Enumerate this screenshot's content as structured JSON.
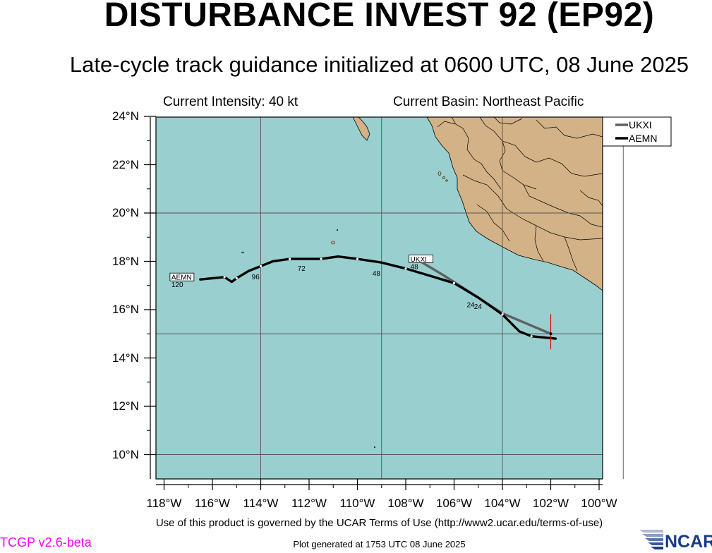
{
  "title": "DISTURBANCE INVEST 92 (EP92)",
  "subtitle": "Late-cycle track guidance initialized at 0600 UTC, 08 June 2025",
  "intensity_text": "Current Intensity: 40 kt",
  "basin_text": "Current Basin: Northeast Pacific",
  "y_ticks": [
    "24°N",
    "22°N",
    "20°N",
    "18°N",
    "16°N",
    "14°N",
    "12°N",
    "10°N"
  ],
  "x_ticks": [
    "118°W",
    "116°W",
    "114°W",
    "112°W",
    "110°W",
    "108°W",
    "106°W",
    "104°W",
    "102°W",
    "100°W"
  ],
  "legend": [
    {
      "name": "UKXI",
      "color": "#606060"
    },
    {
      "name": "AEMN",
      "color": "#000000"
    }
  ],
  "ocean_color": "#99cfcf",
  "land_color": "#d2b286",
  "current_position_marker_color": "#e00000",
  "current_position": {
    "lon": -102.0,
    "lat": 15.0
  },
  "tracks": [
    {
      "name": "UKXI",
      "label": "UKXI",
      "label_hour": "48",
      "color": "#606060",
      "points": [
        [
          -102.0,
          15.0
        ],
        [
          -104.0,
          15.85
        ],
        [
          -106.4,
          17.4
        ],
        [
          -107.4,
          18.0
        ]
      ],
      "hour_labels": [
        {
          "text": "24",
          "lon": -105.3,
          "lat": 16.45
        }
      ]
    },
    {
      "name": "AEMN",
      "label": "AEMN",
      "label_hour": "120",
      "color": "#000000",
      "points": [
        [
          -101.8,
          14.8
        ],
        [
          -102.8,
          14.9
        ],
        [
          -103.3,
          15.1
        ],
        [
          -104.0,
          15.8
        ],
        [
          -105.0,
          16.5
        ],
        [
          -106.0,
          17.1
        ],
        [
          -107.0,
          17.4
        ],
        [
          -108.0,
          17.7
        ],
        [
          -109.0,
          17.95
        ],
        [
          -110.0,
          18.1
        ],
        [
          -110.8,
          18.2
        ],
        [
          -111.5,
          18.1
        ],
        [
          -112.2,
          18.1
        ],
        [
          -112.8,
          18.1
        ],
        [
          -113.5,
          18.0
        ],
        [
          -114.0,
          17.8
        ],
        [
          -114.5,
          17.6
        ],
        [
          -115.0,
          17.3
        ],
        [
          -115.2,
          17.15
        ],
        [
          -115.5,
          17.35
        ],
        [
          -116.5,
          17.25
        ]
      ],
      "hour_labels": [
        {
          "text": "24",
          "lon": -105.0,
          "lat": 16.38
        },
        {
          "text": "48",
          "lon": -109.2,
          "lat": 17.75
        },
        {
          "text": "72",
          "lon": -112.3,
          "lat": 17.95
        },
        {
          "text": "96",
          "lon": -114.2,
          "lat": 17.6
        }
      ]
    }
  ],
  "footer": "Use of this product is governed by the UCAR Terms of Use (http://www2.ucar.edu/terms-of-use)",
  "version": "TCGP v2.6-beta",
  "generated": "Plot generated at 1753 UTC   08 June 2025",
  "logo_text": "NCAR"
}
